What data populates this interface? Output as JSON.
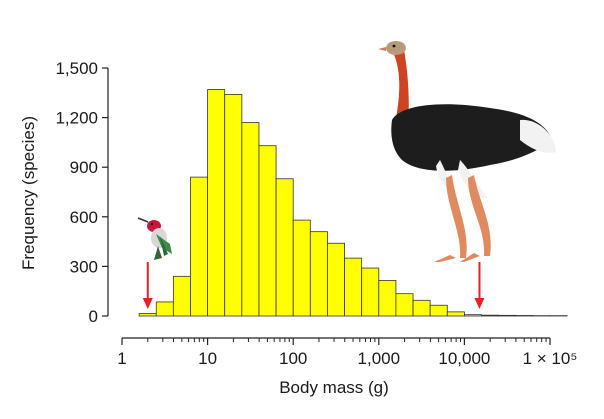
{
  "chart_data": {
    "type": "bar",
    "title": "",
    "xlabel": "Body mass (g)",
    "ylabel": "Frequency (species)",
    "x_scale": "log10",
    "xlim": [
      1,
      100000
    ],
    "ylim": [
      0,
      1500
    ],
    "x_ticks": [
      {
        "value": 1,
        "label": "1"
      },
      {
        "value": 10,
        "label": "10"
      },
      {
        "value": 100,
        "label": "100"
      },
      {
        "value": 1000,
        "label": "1,000"
      },
      {
        "value": 10000,
        "label": "10,000"
      },
      {
        "value": 100000,
        "label": "1 × 10⁵"
      }
    ],
    "y_ticks": [
      {
        "value": 0,
        "label": "0"
      },
      {
        "value": 300,
        "label": "300"
      },
      {
        "value": 600,
        "label": "600"
      },
      {
        "value": 900,
        "label": "900"
      },
      {
        "value": 1200,
        "label": "1,200"
      },
      {
        "value": 1500,
        "label": "1,500"
      }
    ],
    "bin_edges_log10": [
      0.2,
      0.4,
      0.6,
      0.8,
      1.0,
      1.2,
      1.4,
      1.6,
      1.8,
      2.0,
      2.2,
      2.4,
      2.6,
      2.8,
      3.0,
      3.2,
      3.4,
      3.6,
      3.8,
      4.0,
      4.2,
      4.4,
      4.6,
      4.8,
      5.0,
      5.2
    ],
    "values": [
      15,
      85,
      240,
      840,
      1370,
      1340,
      1170,
      1030,
      830,
      580,
      510,
      440,
      350,
      290,
      215,
      135,
      95,
      65,
      25,
      8,
      5,
      4,
      3,
      2,
      2
    ],
    "bar_color": "#ffff00",
    "bar_edge_color": "#333333",
    "arrow_color": "#e8202a",
    "arrows_at_x": [
      2,
      15000
    ],
    "illustrations": [
      "hummingbird-icon",
      "ostrich-icon"
    ],
    "grid": false
  }
}
